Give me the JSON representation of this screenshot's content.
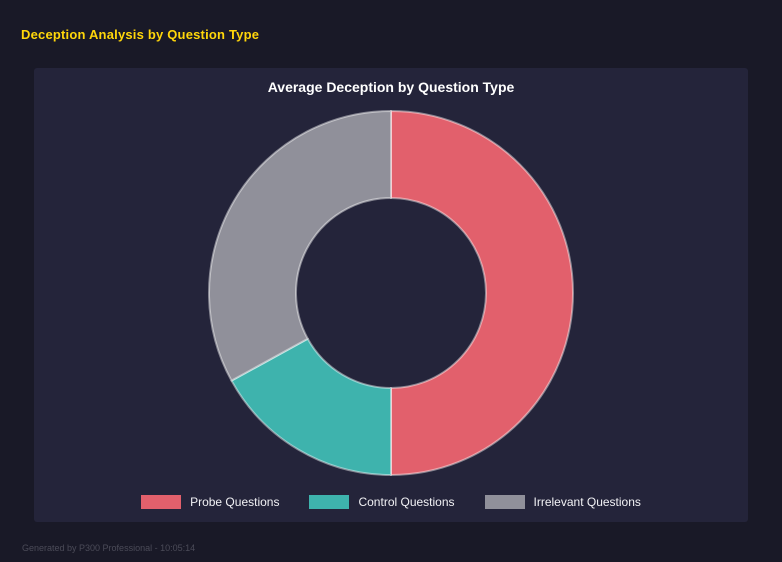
{
  "page": {
    "title": "Deception Analysis by Question Type",
    "footer": "Generated by P300 Professional - 10:05:14"
  },
  "chart_data": {
    "type": "pie",
    "subtype": "doughnut",
    "title": "Average Deception by Question Type",
    "categories": [
      "Probe Questions",
      "Control Questions",
      "Irrelevant Questions"
    ],
    "values": [
      50,
      17,
      33
    ],
    "unit": "percent share of ring (estimated from segment angles)",
    "colors": [
      "#e2606c",
      "#3eb3ad",
      "#90909a"
    ],
    "border_color": "rgba(255,255,255,0.45)",
    "hole_ratio": 0.52,
    "rotation_start_deg": 0,
    "direction": "clockwise-from-top",
    "legend_position": "bottom",
    "grid": false,
    "panel_background": "#24243a",
    "page_background": "#191927",
    "title_color": "#ffd60a"
  }
}
